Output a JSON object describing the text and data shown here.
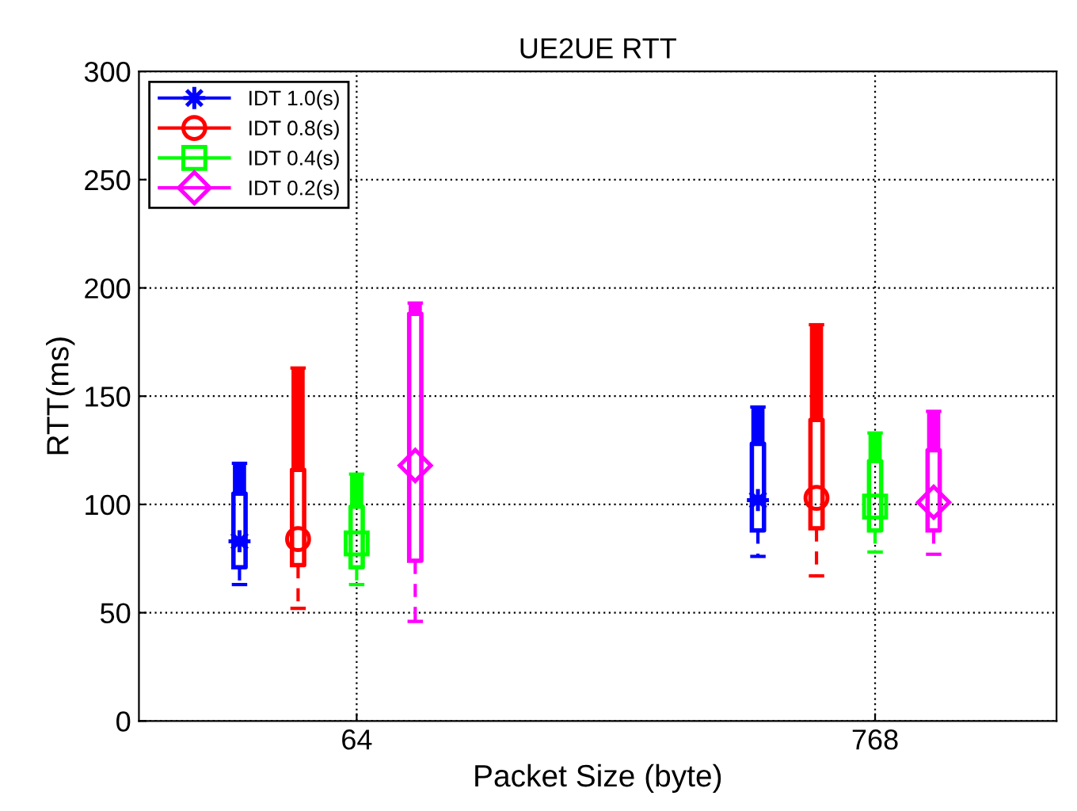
{
  "chart_data": {
    "type": "box",
    "title": "UE2UE RTT",
    "xlabel": "Packet Size (byte)",
    "ylabel": "RTT(ms)",
    "categories": [
      "64",
      "768"
    ],
    "ylim": [
      0,
      300
    ],
    "yticks": [
      0,
      50,
      100,
      150,
      200,
      250,
      300
    ],
    "grid": true,
    "legend": "top left",
    "series": [
      {
        "name": "IDT 1.0(s)",
        "color": "#0000ff",
        "marker": "star",
        "boxes": [
          {
            "low": 63,
            "q1": 71,
            "median": 83,
            "q3": 105,
            "high": 119
          },
          {
            "low": 76,
            "q1": 88,
            "median": 102,
            "q3": 128,
            "high": 145
          }
        ]
      },
      {
        "name": "IDT 0.8(s)",
        "color": "#ff0000",
        "marker": "circle",
        "boxes": [
          {
            "low": 52,
            "q1": 72,
            "median": 84,
            "q3": 116,
            "high": 163
          },
          {
            "low": 67,
            "q1": 89,
            "median": 103,
            "q3": 139,
            "high": 183
          }
        ]
      },
      {
        "name": "IDT 0.4(s)",
        "color": "#00ff00",
        "marker": "square",
        "boxes": [
          {
            "low": 63,
            "q1": 71,
            "median": 82,
            "q3": 99,
            "high": 114
          },
          {
            "low": 78,
            "q1": 88,
            "median": 99,
            "q3": 120,
            "high": 133
          }
        ]
      },
      {
        "name": "IDT 0.2(s)",
        "color": "#ff00ff",
        "marker": "diamond",
        "boxes": [
          {
            "low": 46,
            "q1": 74,
            "median": 118,
            "q3": 188,
            "high": 193
          },
          {
            "low": 77,
            "q1": 88,
            "median": 101,
            "q3": 125,
            "high": 143
          }
        ]
      }
    ]
  }
}
